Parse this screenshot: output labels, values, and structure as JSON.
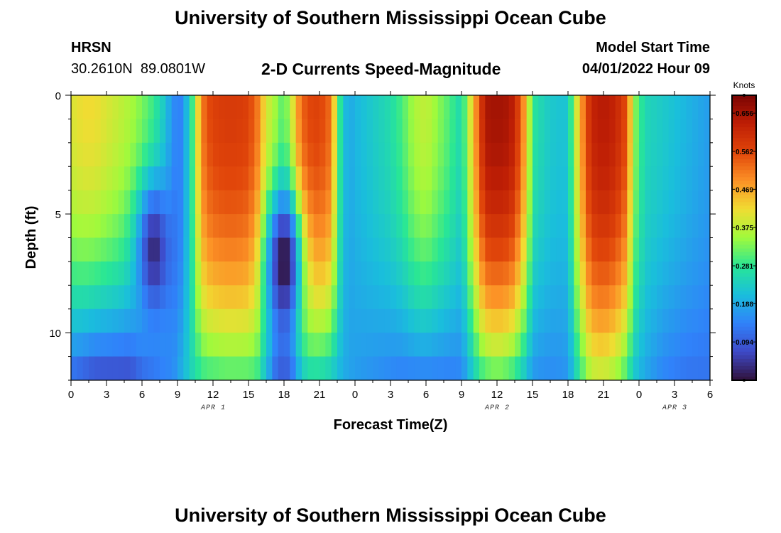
{
  "header": {
    "title": "University of Southern Mississippi Ocean Cube",
    "station": "HRSN",
    "coords": "30.2610N  89.0801W",
    "plot_title": "2-D Currents Speed-Magnitude",
    "model_label": "Model Start Time",
    "model_time": "04/01/2022 Hour 09"
  },
  "footer": {
    "title": "University of Southern Mississippi Ocean Cube"
  },
  "chart_data": {
    "type": "heatmap",
    "title": "2-D Currents Speed-Magnitude",
    "xlabel": "Forecast Time(Z)",
    "ylabel": "Depth (ft)",
    "x_tick_labels": [
      "0",
      "3",
      "6",
      "9",
      "12",
      "15",
      "18",
      "21",
      "0",
      "3",
      "6",
      "9",
      "12",
      "15",
      "18",
      "21",
      "0",
      "3",
      "6"
    ],
    "x_range_hours": [
      0,
      54
    ],
    "day_labels": [
      {
        "label": "APR 1",
        "hour": 11
      },
      {
        "label": "APR 2",
        "hour": 35
      },
      {
        "label": "APR 3",
        "hour": 50
      }
    ],
    "y_tick_labels": [
      "0",
      "5",
      "10"
    ],
    "y_range_ft": [
      0,
      12
    ],
    "colorbar": {
      "unit": "Knots",
      "range": [
        0,
        0.7
      ],
      "tick_labels": [
        "0.656",
        "0.562",
        "0.469",
        "0.375",
        "0.281",
        "0.188",
        "0.094"
      ],
      "tick_values": [
        0.656,
        0.562,
        0.469,
        0.375,
        0.281,
        0.188,
        0.094
      ]
    },
    "depth_bins_ft": [
      0.5,
      1.5,
      2.5,
      3.5,
      4.5,
      5.5,
      6.5,
      7.5,
      8.5,
      9.5,
      10.5,
      11.5
    ],
    "hour_nodes": [
      0,
      1,
      2,
      3,
      4,
      5,
      6,
      7,
      8,
      8.6,
      9.4,
      10.3,
      11,
      11.5,
      12,
      13,
      14,
      15,
      15.7,
      16.5,
      17.3,
      18,
      18.6,
      19.4,
      20,
      21,
      22,
      22.6,
      23.4,
      24,
      25,
      26,
      27,
      28,
      29,
      30,
      31,
      32,
      33,
      33.5,
      34.5,
      35,
      36,
      37,
      37.5,
      38.5,
      39,
      40,
      41,
      42,
      42.5,
      43.5,
      44,
      45,
      46,
      47,
      47.5,
      48.5,
      50,
      52,
      54
    ],
    "speed_surface_knots": [
      0.4,
      0.42,
      0.42,
      0.4,
      0.38,
      0.36,
      0.33,
      0.29,
      0.22,
      0.15,
      0.14,
      0.3,
      0.5,
      0.55,
      0.57,
      0.58,
      0.58,
      0.57,
      0.52,
      0.4,
      0.35,
      0.3,
      0.38,
      0.52,
      0.56,
      0.57,
      0.52,
      0.3,
      0.18,
      0.2,
      0.22,
      0.24,
      0.26,
      0.3,
      0.36,
      0.38,
      0.34,
      0.3,
      0.25,
      0.35,
      0.55,
      0.65,
      0.66,
      0.65,
      0.62,
      0.45,
      0.28,
      0.24,
      0.22,
      0.22,
      0.35,
      0.55,
      0.62,
      0.64,
      0.62,
      0.55,
      0.35,
      0.25,
      0.23,
      0.2,
      0.17
    ],
    "speed_bottom_knots": [
      0.1,
      0.08,
      0.06,
      0.06,
      0.06,
      0.06,
      0.1,
      0.12,
      0.14,
      0.15,
      0.2,
      0.25,
      0.27,
      0.28,
      0.28,
      0.29,
      0.29,
      0.29,
      0.28,
      0.2,
      0.1,
      0.08,
      0.1,
      0.2,
      0.24,
      0.24,
      0.22,
      0.2,
      0.18,
      0.17,
      0.16,
      0.15,
      0.14,
      0.13,
      0.13,
      0.13,
      0.13,
      0.13,
      0.14,
      0.18,
      0.26,
      0.28,
      0.3,
      0.28,
      0.26,
      0.2,
      0.16,
      0.15,
      0.15,
      0.16,
      0.22,
      0.32,
      0.36,
      0.37,
      0.34,
      0.28,
      0.22,
      0.18,
      0.14,
      0.12,
      0.12
    ],
    "low_speed_cores": [
      {
        "hour": 7,
        "depth_ft": 6.5,
        "speed_knots": 0.03
      },
      {
        "hour": 18,
        "depth_ft": 7,
        "speed_knots": 0.0
      }
    ]
  }
}
